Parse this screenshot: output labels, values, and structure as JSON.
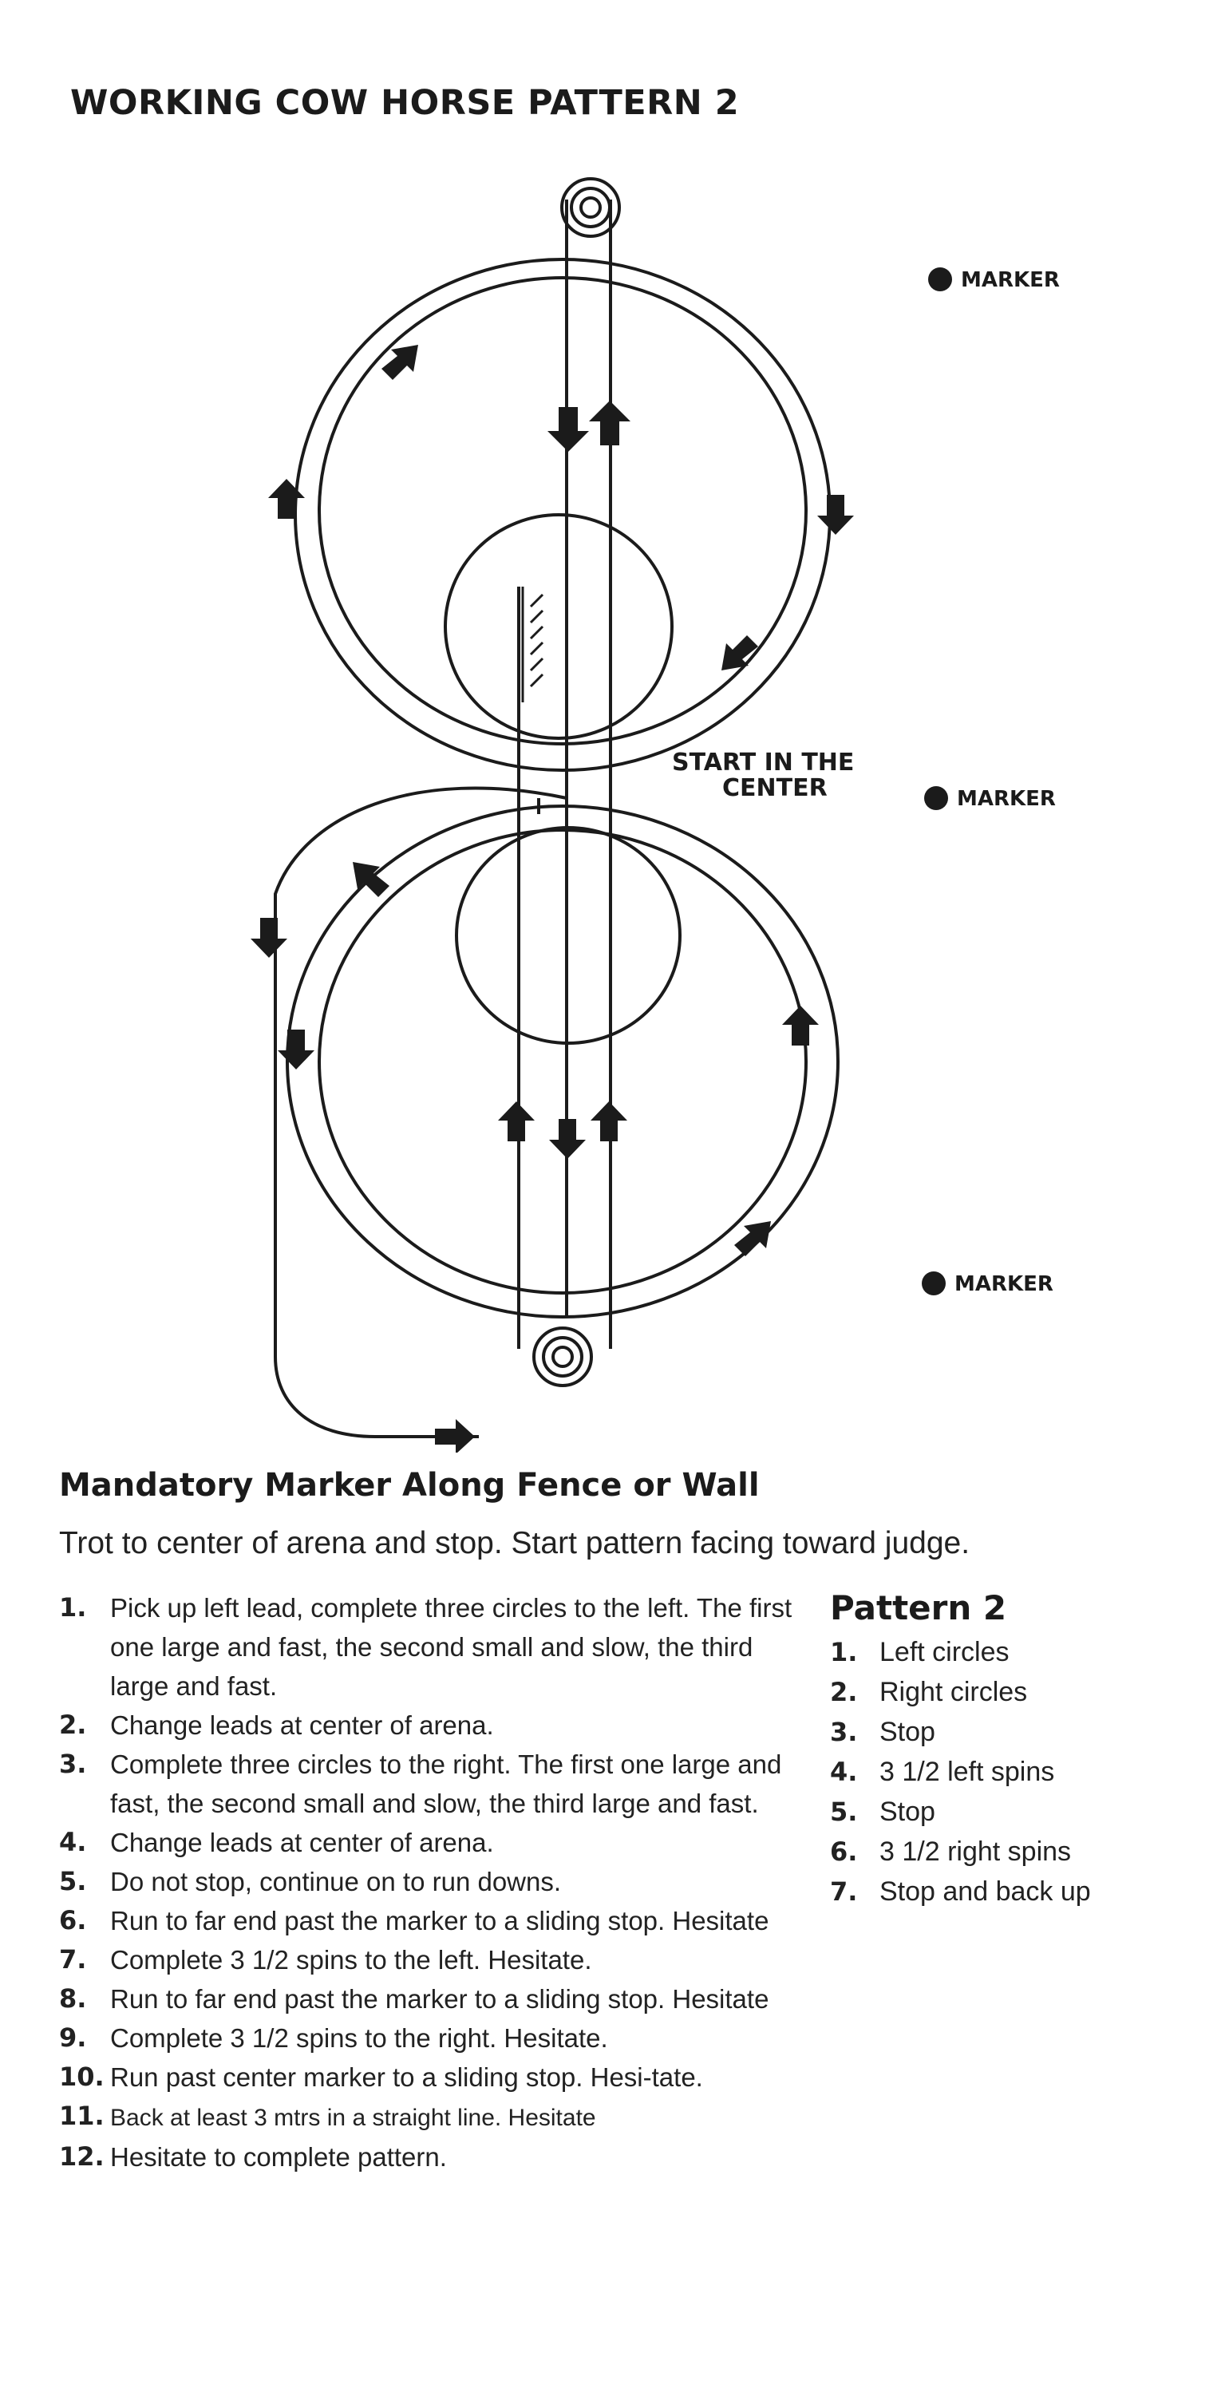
{
  "title": "WORKING COW HORSE PATTERN 2",
  "diagram": {
    "markers": [
      "MARKER",
      "MARKER",
      "MARKER"
    ],
    "start_label_line1": "START IN THE",
    "start_label_line2": "CENTER"
  },
  "subheading": "Mandatory Marker Along Fence or Wall",
  "intro": "Trot to center of arena and stop. Start pattern facing toward judge.",
  "steps": [
    {
      "num": "1.",
      "text": "Pick up left lead, complete three circles to the left. The first one large and fast, the second small and slow, the third large and fast."
    },
    {
      "num": "2.",
      "text": "Change leads at center of arena."
    },
    {
      "num": "3.",
      "text": "Complete three circles to the right. The first one large and fast, the second small and slow, the third large and fast."
    },
    {
      "num": "4.",
      "text": "Change leads at center of arena."
    },
    {
      "num": "5.",
      "text": "Do not stop, continue on to run downs."
    },
    {
      "num": "6.",
      "text": "Run to far end past the marker to a sliding stop. Hesitate"
    },
    {
      "num": "7.",
      "text": "Complete 3 1/2 spins to the left.  Hesitate."
    },
    {
      "num": "8.",
      "text": "Run to far end past the marker to a sliding stop. Hesitate"
    },
    {
      "num": "9.",
      "text": "Complete 3 1/2 spins to the right. Hesitate."
    },
    {
      "num": "10.",
      "text": "Run past center marker to a sliding stop. Hesi-tate."
    },
    {
      "num": "11.",
      "text": "Back at least 3 mtrs in a straight line.  Hesitate"
    },
    {
      "num": "12.",
      "text": "Hesitate to complete pattern."
    }
  ],
  "summary": {
    "heading": "Pattern 2",
    "items": [
      {
        "num": "1.",
        "text": "Left circles"
      },
      {
        "num": "2.",
        "text": "Right circles"
      },
      {
        "num": "3.",
        "text": "Stop"
      },
      {
        "num": "4.",
        "text": "3 1/2 left spins"
      },
      {
        "num": "5.",
        "text": "Stop"
      },
      {
        "num": "6.",
        "text": "3 1/2 right spins"
      },
      {
        "num": "7.",
        "text": "Stop and back up"
      }
    ]
  }
}
